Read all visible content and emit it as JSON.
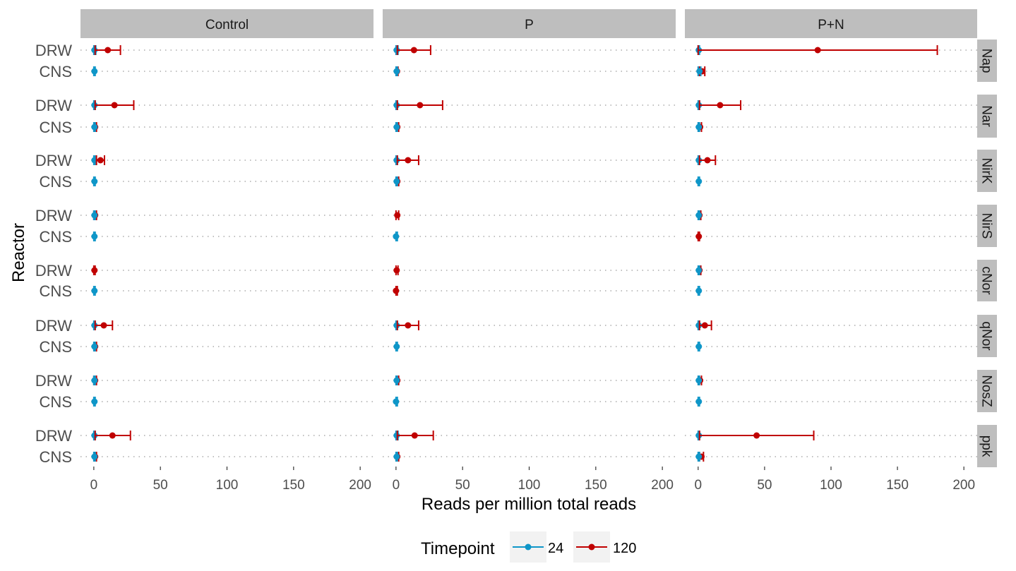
{
  "chart_data": {
    "type": "dot-errorbar-facet",
    "xlabel": "Reads per million total reads",
    "ylabel": "Reactor",
    "xlim": [
      -10,
      210
    ],
    "x_ticks": [
      0,
      50,
      100,
      150,
      200
    ],
    "x_tick_labels": [
      "0",
      "50",
      "100",
      "150",
      "200"
    ],
    "column_facets": [
      "Control",
      "P",
      "P+N"
    ],
    "row_facets": [
      "Nap",
      "Nar",
      "NirK",
      "NirS",
      "cNor",
      "qNor",
      "NosZ",
      "ppk"
    ],
    "reactors": [
      "DRW",
      "CNS"
    ],
    "grid": "dotted horizontal",
    "legend": {
      "title": "Timepoint",
      "position": "bottom",
      "entries": [
        {
          "label": "24",
          "color": "#0E96C8"
        },
        {
          "label": "120",
          "color": "#C00000"
        }
      ]
    },
    "points": [
      {
        "col": "Control",
        "row": "Nap",
        "reactor": "DRW",
        "t": "24",
        "mean": 0.5,
        "lo": 0,
        "hi": 1.5
      },
      {
        "col": "Control",
        "row": "Nap",
        "reactor": "DRW",
        "t": "120",
        "mean": 10.5,
        "lo": 1,
        "hi": 20
      },
      {
        "col": "Control",
        "row": "Nap",
        "reactor": "CNS",
        "t": "24",
        "mean": 0.5,
        "lo": 0,
        "hi": 1
      },
      {
        "col": "Control",
        "row": "Nar",
        "reactor": "DRW",
        "t": "24",
        "mean": 0.5,
        "lo": 0,
        "hi": 1
      },
      {
        "col": "Control",
        "row": "Nar",
        "reactor": "DRW",
        "t": "120",
        "mean": 15.5,
        "lo": 1,
        "hi": 30
      },
      {
        "col": "Control",
        "row": "Nar",
        "reactor": "CNS",
        "t": "120",
        "mean": 1,
        "lo": 0.5,
        "hi": 2
      },
      {
        "col": "Control",
        "row": "Nar",
        "reactor": "CNS",
        "t": "24",
        "mean": 0.5,
        "lo": 0,
        "hi": 1
      },
      {
        "col": "Control",
        "row": "NirK",
        "reactor": "DRW",
        "t": "24",
        "mean": 0.5,
        "lo": 0,
        "hi": 1
      },
      {
        "col": "Control",
        "row": "NirK",
        "reactor": "DRW",
        "t": "120",
        "mean": 5,
        "lo": 2,
        "hi": 8
      },
      {
        "col": "Control",
        "row": "NirK",
        "reactor": "CNS",
        "t": "24",
        "mean": 0.5,
        "lo": 0,
        "hi": 1
      },
      {
        "col": "Control",
        "row": "NirS",
        "reactor": "DRW",
        "t": "120",
        "mean": 1,
        "lo": 0,
        "hi": 2
      },
      {
        "col": "Control",
        "row": "NirS",
        "reactor": "DRW",
        "t": "24",
        "mean": 0.5,
        "lo": 0,
        "hi": 1
      },
      {
        "col": "Control",
        "row": "NirS",
        "reactor": "CNS",
        "t": "24",
        "mean": 0.5,
        "lo": 0,
        "hi": 1
      },
      {
        "col": "Control",
        "row": "cNor",
        "reactor": "DRW",
        "t": "120",
        "mean": 0.5,
        "lo": 0,
        "hi": 1
      },
      {
        "col": "Control",
        "row": "cNor",
        "reactor": "CNS",
        "t": "24",
        "mean": 0.5,
        "lo": 0,
        "hi": 1
      },
      {
        "col": "Control",
        "row": "qNor",
        "reactor": "DRW",
        "t": "24",
        "mean": 0.5,
        "lo": 0,
        "hi": 1
      },
      {
        "col": "Control",
        "row": "qNor",
        "reactor": "DRW",
        "t": "120",
        "mean": 7.5,
        "lo": 1,
        "hi": 14
      },
      {
        "col": "Control",
        "row": "qNor",
        "reactor": "CNS",
        "t": "120",
        "mean": 1,
        "lo": 0.5,
        "hi": 2
      },
      {
        "col": "Control",
        "row": "qNor",
        "reactor": "CNS",
        "t": "24",
        "mean": 0.5,
        "lo": 0,
        "hi": 1
      },
      {
        "col": "Control",
        "row": "NosZ",
        "reactor": "DRW",
        "t": "120",
        "mean": 1,
        "lo": 0,
        "hi": 2
      },
      {
        "col": "Control",
        "row": "NosZ",
        "reactor": "DRW",
        "t": "24",
        "mean": 0.5,
        "lo": 0,
        "hi": 1
      },
      {
        "col": "Control",
        "row": "NosZ",
        "reactor": "CNS",
        "t": "24",
        "mean": 0.5,
        "lo": 0,
        "hi": 1
      },
      {
        "col": "Control",
        "row": "ppk",
        "reactor": "DRW",
        "t": "24",
        "mean": 0.5,
        "lo": 0,
        "hi": 1
      },
      {
        "col": "Control",
        "row": "ppk",
        "reactor": "DRW",
        "t": "120",
        "mean": 14,
        "lo": 1,
        "hi": 27.5
      },
      {
        "col": "Control",
        "row": "ppk",
        "reactor": "CNS",
        "t": "120",
        "mean": 1,
        "lo": 0.5,
        "hi": 2
      },
      {
        "col": "Control",
        "row": "ppk",
        "reactor": "CNS",
        "t": "24",
        "mean": 0.5,
        "lo": 0,
        "hi": 1
      },
      {
        "col": "P",
        "row": "Nap",
        "reactor": "DRW",
        "t": "24",
        "mean": 0.5,
        "lo": 0,
        "hi": 1.5
      },
      {
        "col": "P",
        "row": "Nap",
        "reactor": "DRW",
        "t": "120",
        "mean": 13.5,
        "lo": 1,
        "hi": 26
      },
      {
        "col": "P",
        "row": "Nap",
        "reactor": "CNS",
        "t": "120",
        "mean": 0.8,
        "lo": 0.3,
        "hi": 1.5
      },
      {
        "col": "P",
        "row": "Nap",
        "reactor": "CNS",
        "t": "24",
        "mean": 0.5,
        "lo": 0,
        "hi": 1
      },
      {
        "col": "P",
        "row": "Nar",
        "reactor": "DRW",
        "t": "24",
        "mean": 0.5,
        "lo": 0,
        "hi": 1
      },
      {
        "col": "P",
        "row": "Nar",
        "reactor": "DRW",
        "t": "120",
        "mean": 18,
        "lo": 1,
        "hi": 35
      },
      {
        "col": "P",
        "row": "Nar",
        "reactor": "CNS",
        "t": "120",
        "mean": 1,
        "lo": 0.5,
        "hi": 2
      },
      {
        "col": "P",
        "row": "Nar",
        "reactor": "CNS",
        "t": "24",
        "mean": 0.5,
        "lo": 0,
        "hi": 1
      },
      {
        "col": "P",
        "row": "NirK",
        "reactor": "DRW",
        "t": "24",
        "mean": 0.5,
        "lo": 0,
        "hi": 1
      },
      {
        "col": "P",
        "row": "NirK",
        "reactor": "DRW",
        "t": "120",
        "mean": 9,
        "lo": 1,
        "hi": 17
      },
      {
        "col": "P",
        "row": "NirK",
        "reactor": "CNS",
        "t": "120",
        "mean": 1,
        "lo": 0.5,
        "hi": 2
      },
      {
        "col": "P",
        "row": "NirK",
        "reactor": "CNS",
        "t": "24",
        "mean": 0.5,
        "lo": 0,
        "hi": 1
      },
      {
        "col": "P",
        "row": "NirS",
        "reactor": "DRW",
        "t": "120",
        "mean": 1,
        "lo": 0,
        "hi": 2
      },
      {
        "col": "P",
        "row": "NirS",
        "reactor": "CNS",
        "t": "24",
        "mean": 0,
        "lo": 0,
        "hi": 1
      },
      {
        "col": "P",
        "row": "cNor",
        "reactor": "DRW",
        "t": "120",
        "mean": 0.5,
        "lo": 0,
        "hi": 1.5
      },
      {
        "col": "P",
        "row": "cNor",
        "reactor": "CNS",
        "t": "120",
        "mean": 0,
        "lo": 0,
        "hi": 1
      },
      {
        "col": "P",
        "row": "qNor",
        "reactor": "DRW",
        "t": "24",
        "mean": 0.5,
        "lo": 0,
        "hi": 1
      },
      {
        "col": "P",
        "row": "qNor",
        "reactor": "DRW",
        "t": "120",
        "mean": 9,
        "lo": 1,
        "hi": 17
      },
      {
        "col": "P",
        "row": "qNor",
        "reactor": "CNS",
        "t": "24",
        "mean": 0.5,
        "lo": 0,
        "hi": 1
      },
      {
        "col": "P",
        "row": "NosZ",
        "reactor": "DRW",
        "t": "120",
        "mean": 1,
        "lo": 0.5,
        "hi": 2
      },
      {
        "col": "P",
        "row": "NosZ",
        "reactor": "DRW",
        "t": "24",
        "mean": 0.5,
        "lo": 0,
        "hi": 1
      },
      {
        "col": "P",
        "row": "NosZ",
        "reactor": "CNS",
        "t": "24",
        "mean": 0,
        "lo": 0,
        "hi": 1
      },
      {
        "col": "P",
        "row": "ppk",
        "reactor": "DRW",
        "t": "24",
        "mean": 0.5,
        "lo": 0,
        "hi": 1.5
      },
      {
        "col": "P",
        "row": "ppk",
        "reactor": "DRW",
        "t": "120",
        "mean": 14,
        "lo": 1,
        "hi": 28
      },
      {
        "col": "P",
        "row": "ppk",
        "reactor": "CNS",
        "t": "120",
        "mean": 1,
        "lo": 0.5,
        "hi": 2
      },
      {
        "col": "P",
        "row": "ppk",
        "reactor": "CNS",
        "t": "24",
        "mean": 0.5,
        "lo": 0,
        "hi": 1
      },
      {
        "col": "P+N",
        "row": "Nap",
        "reactor": "DRW",
        "t": "24",
        "mean": 0.5,
        "lo": 0,
        "hi": 1
      },
      {
        "col": "P+N",
        "row": "Nap",
        "reactor": "DRW",
        "t": "120",
        "mean": 90,
        "lo": 0,
        "hi": 180
      },
      {
        "col": "P+N",
        "row": "Nap",
        "reactor": "CNS",
        "t": "120",
        "mean": 3,
        "lo": 1,
        "hi": 5
      },
      {
        "col": "P+N",
        "row": "Nap",
        "reactor": "CNS",
        "t": "24",
        "mean": 1,
        "lo": 0,
        "hi": 2
      },
      {
        "col": "P+N",
        "row": "Nar",
        "reactor": "DRW",
        "t": "24",
        "mean": 0.5,
        "lo": 0,
        "hi": 1
      },
      {
        "col": "P+N",
        "row": "Nar",
        "reactor": "DRW",
        "t": "120",
        "mean": 16.5,
        "lo": 1,
        "hi": 32
      },
      {
        "col": "P+N",
        "row": "Nar",
        "reactor": "CNS",
        "t": "120",
        "mean": 1.5,
        "lo": 0.5,
        "hi": 2.5
      },
      {
        "col": "P+N",
        "row": "Nar",
        "reactor": "CNS",
        "t": "24",
        "mean": 0.5,
        "lo": 0,
        "hi": 1
      },
      {
        "col": "P+N",
        "row": "NirK",
        "reactor": "DRW",
        "t": "24",
        "mean": 0.5,
        "lo": 0,
        "hi": 1
      },
      {
        "col": "P+N",
        "row": "NirK",
        "reactor": "DRW",
        "t": "120",
        "mean": 7,
        "lo": 1,
        "hi": 13
      },
      {
        "col": "P+N",
        "row": "NirK",
        "reactor": "CNS",
        "t": "24",
        "mean": 0.5,
        "lo": 0,
        "hi": 1
      },
      {
        "col": "P+N",
        "row": "NirS",
        "reactor": "DRW",
        "t": "120",
        "mean": 1,
        "lo": 0.5,
        "hi": 2
      },
      {
        "col": "P+N",
        "row": "NirS",
        "reactor": "DRW",
        "t": "24",
        "mean": 0.5,
        "lo": 0,
        "hi": 1
      },
      {
        "col": "P+N",
        "row": "NirS",
        "reactor": "CNS",
        "t": "120",
        "mean": 0.5,
        "lo": 0,
        "hi": 1
      },
      {
        "col": "P+N",
        "row": "cNor",
        "reactor": "DRW",
        "t": "120",
        "mean": 1,
        "lo": 0.5,
        "hi": 2
      },
      {
        "col": "P+N",
        "row": "cNor",
        "reactor": "DRW",
        "t": "24",
        "mean": 0.5,
        "lo": 0,
        "hi": 1
      },
      {
        "col": "P+N",
        "row": "cNor",
        "reactor": "CNS",
        "t": "24",
        "mean": 0.5,
        "lo": 0,
        "hi": 1
      },
      {
        "col": "P+N",
        "row": "qNor",
        "reactor": "DRW",
        "t": "24",
        "mean": 0.5,
        "lo": 0,
        "hi": 1
      },
      {
        "col": "P+N",
        "row": "qNor",
        "reactor": "DRW",
        "t": "120",
        "mean": 5,
        "lo": 1,
        "hi": 10
      },
      {
        "col": "P+N",
        "row": "qNor",
        "reactor": "CNS",
        "t": "24",
        "mean": 0.5,
        "lo": 0,
        "hi": 1
      },
      {
        "col": "P+N",
        "row": "NosZ",
        "reactor": "DRW",
        "t": "120",
        "mean": 1.5,
        "lo": 0.5,
        "hi": 2.5
      },
      {
        "col": "P+N",
        "row": "NosZ",
        "reactor": "DRW",
        "t": "24",
        "mean": 0.5,
        "lo": 0,
        "hi": 1
      },
      {
        "col": "P+N",
        "row": "NosZ",
        "reactor": "CNS",
        "t": "24",
        "mean": 0.5,
        "lo": 0,
        "hi": 1
      },
      {
        "col": "P+N",
        "row": "ppk",
        "reactor": "DRW",
        "t": "24",
        "mean": 0.5,
        "lo": 0,
        "hi": 1
      },
      {
        "col": "P+N",
        "row": "ppk",
        "reactor": "DRW",
        "t": "120",
        "mean": 44,
        "lo": 1,
        "hi": 87
      },
      {
        "col": "P+N",
        "row": "ppk",
        "reactor": "CNS",
        "t": "120",
        "mean": 2.5,
        "lo": 1,
        "hi": 4
      },
      {
        "col": "P+N",
        "row": "ppk",
        "reactor": "CNS",
        "t": "24",
        "mean": 0.5,
        "lo": 0,
        "hi": 1
      }
    ]
  }
}
